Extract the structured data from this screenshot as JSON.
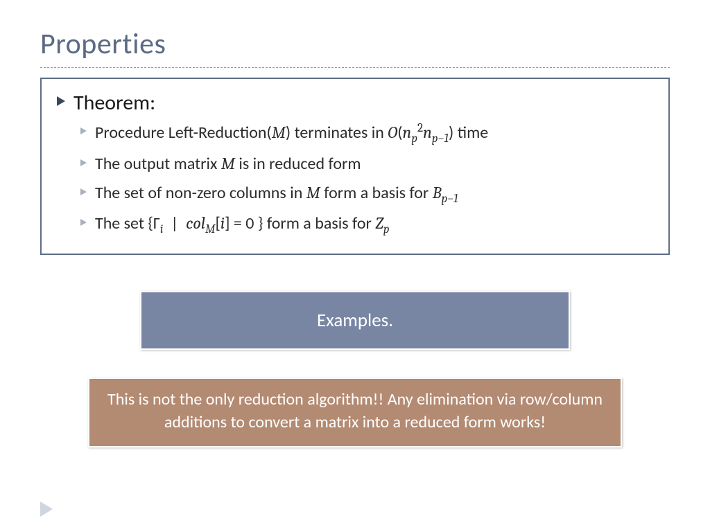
{
  "title": "Properties",
  "theorem": {
    "heading": "Theorem:",
    "items": [
      "Procedure Left-Reduction(𝑀) terminates in 𝑂(𝑛²ₚ 𝑛ₚ₋₁) time",
      "The output matrix 𝑀 is in reduced form",
      "The set of non-zero columns in 𝑀 form a basis for 𝐵ₚ₋₁",
      "The set {Γᵢ | col_M[i] = 0 } form a basis for 𝑍ₚ"
    ]
  },
  "examples_label": "Examples.",
  "note_text": "This is not the only reduction algorithm!! Any elimination via row/column additions to convert a matrix into a reduced form works!",
  "colors": {
    "title_color": "#5b6a84",
    "box_border": "#5e6d86",
    "examples_bg": "#7885a3",
    "note_bg": "#b38a72",
    "bullet_dark": "#3a475b",
    "bullet_light": "#a8b0bd",
    "corner_tri": "#cfd6e0",
    "dashed_rule": "#8a9bb0"
  },
  "typography": {
    "title_fontsize": 42,
    "heading_fontsize": 30,
    "item_fontsize": 24,
    "examples_fontsize": 27,
    "note_fontsize": 24
  },
  "layout": {
    "slide_width": 1024,
    "slide_height": 768,
    "theorem_box_border_width": 2,
    "examples_box_width": 620,
    "note_box_width": 770
  }
}
